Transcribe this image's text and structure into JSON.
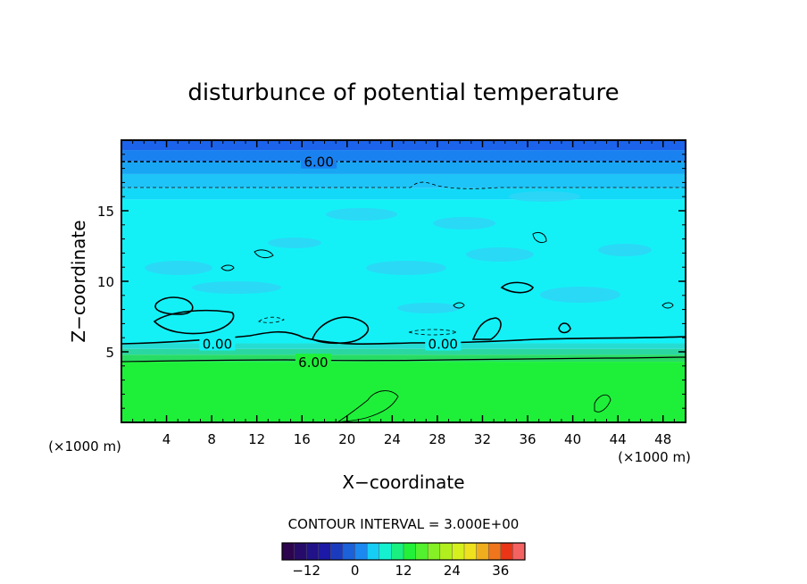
{
  "chart_data": {
    "type": "heatmap",
    "title": "disturbunce of potential temperature",
    "xlabel": "X−coordinate",
    "ylabel": "Z−coordinate",
    "x_unit_left": "(×1000 m)",
    "x_unit_right": "(×1000 m)",
    "xlim": [
      0,
      50
    ],
    "ylim": [
      0,
      20
    ],
    "x_ticks": [
      4,
      8,
      12,
      16,
      20,
      24,
      28,
      32,
      36,
      40,
      44,
      48
    ],
    "y_ticks": [
      5,
      10,
      15
    ],
    "x_tick_labels": [
      "4",
      "8",
      "12",
      "16",
      "20",
      "24",
      "28",
      "32",
      "36",
      "40",
      "44",
      "48"
    ],
    "y_tick_labels": [
      "5",
      "10",
      "15"
    ],
    "contour_interval_text": "CONTOUR INTERVAL = 3.000E+00",
    "contour_labels": [
      {
        "text": "6.00",
        "x": 17.5,
        "z": 18.5
      },
      {
        "text": "0.00",
        "x": 8.5,
        "z": 5.6
      },
      {
        "text": "0.00",
        "x": 28.5,
        "z": 5.6
      },
      {
        "text": "6.00",
        "x": 17.0,
        "z": 4.3
      }
    ],
    "bands": [
      {
        "z0": 0,
        "z1": 4.3,
        "color": "#1ef03a"
      },
      {
        "z0": 4.3,
        "z1": 4.8,
        "color": "#28dc64"
      },
      {
        "z0": 4.8,
        "z1": 5.2,
        "color": "#2ad7a0"
      },
      {
        "z0": 5.2,
        "z1": 5.6,
        "color": "#26dcd2"
      },
      {
        "z0": 5.6,
        "z1": 15.8,
        "color": "#13f1f7"
      },
      {
        "z0": 15.8,
        "z1": 16.6,
        "color": "#12d9f8"
      },
      {
        "z0": 16.6,
        "z1": 17.6,
        "color": "#1ec4f8"
      },
      {
        "z0": 17.6,
        "z1": 18.5,
        "color": "#18a6f4"
      },
      {
        "z0": 18.5,
        "z1": 19.3,
        "color": "#1a82f0"
      },
      {
        "z0": 19.3,
        "z1": 20,
        "color": "#1c63ec"
      }
    ],
    "colorbar": {
      "min": -18,
      "max": 42,
      "step": 3,
      "tick_labels": [
        "−12",
        "0",
        "12",
        "24",
        "36"
      ],
      "tick_values": [
        -12,
        0,
        12,
        24,
        36
      ]
    }
  }
}
